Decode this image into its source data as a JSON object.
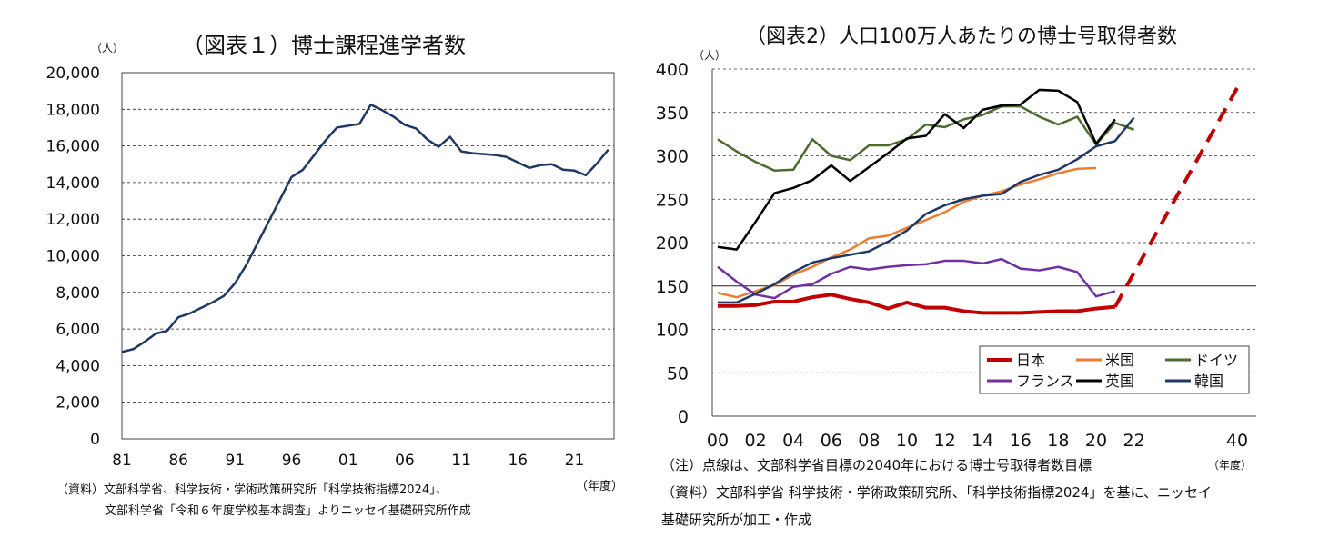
{
  "left": {
    "title": "（図表１）博士課程進学者数",
    "unit": "（人）",
    "year_label": "（年度）",
    "source_line1": "（資料）文部科学省、科学技術・学術政策研究所「科学技術指標2024」、",
    "source_line2": "文部科学省「令和６年度学校基本調査」よりニッセイ基礎研究所作成"
  },
  "right": {
    "title": "（図表2）人口100万人あたりの博士号取得者数",
    "unit": "（人）",
    "year_label": "（年度）",
    "note": "（注）点線は、文部科学省目標の2040年における博士号取得者数目標",
    "source_line1": "（資料）文部科学省 科学技術・学術政策研究所、「科学技術指標2024」を基に、ニッセイ",
    "source_line2": "基礎研究所が加工・作成"
  },
  "chart_data": [
    {
      "type": "line",
      "title": "（図表１）博士課程進学者数",
      "ylabel": "（人）",
      "xlabel": "（年度）",
      "ylim": [
        0,
        20000
      ],
      "yticks": [
        "0",
        "2,000",
        "4,000",
        "6,000",
        "8,000",
        "10,000",
        "12,000",
        "14,000",
        "16,000",
        "18,000",
        "20,000"
      ],
      "xticks": [
        81,
        86,
        91,
        96,
        1,
        6,
        11,
        16,
        21
      ],
      "xtick_labels": [
        "81",
        "86",
        "91",
        "96",
        "01",
        "06",
        "11",
        "16",
        "21"
      ],
      "color": "#1f3864",
      "x": [
        1981,
        1982,
        1983,
        1984,
        1985,
        1986,
        1987,
        1988,
        1989,
        1990,
        1991,
        1992,
        1993,
        1994,
        1995,
        1996,
        1997,
        1998,
        1999,
        2000,
        2001,
        2002,
        2003,
        2004,
        2005,
        2006,
        2007,
        2008,
        2009,
        2010,
        2011,
        2012,
        2013,
        2014,
        2015,
        2016,
        2017,
        2018,
        2019,
        2020,
        2021,
        2022,
        2023,
        2024
      ],
      "values": [
        4750,
        4900,
        5300,
        5750,
        5900,
        6650,
        6850,
        7150,
        7450,
        7800,
        8500,
        9500,
        10700,
        11900,
        13100,
        14300,
        14700,
        15500,
        16300,
        17000,
        17100,
        17200,
        18250,
        17950,
        17600,
        17150,
        16950,
        16350,
        15950,
        16500,
        15700,
        15600,
        15550,
        15500,
        15400,
        15100,
        14800,
        14950,
        15000,
        14700,
        14650,
        14400,
        15050,
        15800
      ],
      "grid": "horizontal dashed"
    },
    {
      "type": "line",
      "title": "（図表2）人口100万人あたりの博士号取得者数",
      "ylabel": "（人）",
      "xlabel": "（年度）",
      "ylim": [
        0,
        400
      ],
      "yticks": [
        "0",
        "50",
        "100",
        "150",
        "200",
        "250",
        "300",
        "350",
        "400"
      ],
      "xtick_labels": [
        "00",
        "02",
        "04",
        "06",
        "08",
        "10",
        "12",
        "14",
        "16",
        "18",
        "20",
        "22",
        "40"
      ],
      "legend_position": "bottom-right",
      "series": [
        {
          "name": "日本",
          "color": "#c00000",
          "x": [
            2000,
            2001,
            2002,
            2003,
            2004,
            2005,
            2006,
            2007,
            2008,
            2009,
            2010,
            2011,
            2012,
            2013,
            2014,
            2015,
            2016,
            2017,
            2018,
            2019,
            2020,
            2021
          ],
          "values": [
            127,
            127,
            128,
            132,
            132,
            137,
            140,
            135,
            131,
            124,
            131,
            125,
            125,
            121,
            119,
            119,
            119,
            120,
            121,
            121,
            124,
            126
          ]
        },
        {
          "name": "米国",
          "color": "#ed7d31",
          "x": [
            2000,
            2001,
            2002,
            2003,
            2004,
            2005,
            2006,
            2007,
            2008,
            2009,
            2010,
            2011,
            2012,
            2013,
            2014,
            2015,
            2016,
            2017,
            2018,
            2019,
            2020
          ],
          "values": [
            142,
            137,
            144,
            151,
            163,
            172,
            183,
            192,
            205,
            208,
            217,
            226,
            235,
            247,
            254,
            259,
            267,
            273,
            280,
            285,
            286
          ]
        },
        {
          "name": "ドイツ",
          "color": "#4e6b2f",
          "x": [
            2000,
            2001,
            2002,
            2003,
            2004,
            2005,
            2006,
            2007,
            2008,
            2009,
            2010,
            2011,
            2012,
            2013,
            2014,
            2015,
            2016,
            2017,
            2018,
            2019,
            2020,
            2021,
            2022
          ],
          "values": [
            319,
            305,
            293,
            283,
            284,
            319,
            300,
            295,
            312,
            312,
            319,
            336,
            333,
            342,
            347,
            357,
            357,
            345,
            336,
            345,
            313,
            338,
            330
          ]
        },
        {
          "name": "フランス",
          "color": "#7030a0",
          "x": [
            2000,
            2001,
            2002,
            2003,
            2004,
            2005,
            2006,
            2007,
            2008,
            2009,
            2010,
            2011,
            2012,
            2013,
            2014,
            2015,
            2016,
            2017,
            2018,
            2019,
            2020,
            2021
          ],
          "values": [
            172,
            155,
            140,
            136,
            149,
            152,
            164,
            172,
            169,
            172,
            174,
            175,
            179,
            179,
            176,
            181,
            170,
            168,
            172,
            166,
            138,
            144
          ]
        },
        {
          "name": "英国",
          "color": "#000000",
          "x": [
            2000,
            2001,
            2002,
            2003,
            2004,
            2005,
            2006,
            2007,
            2008,
            2009,
            2010,
            2011,
            2012,
            2013,
            2014,
            2015,
            2016,
            2017,
            2018,
            2019,
            2020,
            2021
          ],
          "values": [
            195,
            192,
            224,
            257,
            263,
            272,
            289,
            271,
            287,
            303,
            320,
            323,
            348,
            332,
            353,
            358,
            359,
            376,
            375,
            362,
            314,
            342
          ]
        },
        {
          "name": "韓国",
          "color": "#1f3864",
          "x": [
            2000,
            2001,
            2002,
            2003,
            2004,
            2005,
            2006,
            2007,
            2008,
            2009,
            2010,
            2011,
            2012,
            2013,
            2014,
            2015,
            2016,
            2017,
            2018,
            2019,
            2020,
            2021,
            2022
          ],
          "values": [
            131,
            131,
            141,
            152,
            166,
            177,
            182,
            186,
            190,
            201,
            214,
            233,
            243,
            250,
            254,
            256,
            270,
            278,
            284,
            296,
            311,
            317,
            344
          ]
        }
      ],
      "target_line": {
        "color": "#c00000",
        "style": "dashed",
        "x": [
          2021,
          2040
        ],
        "values": [
          126,
          378
        ]
      }
    }
  ]
}
